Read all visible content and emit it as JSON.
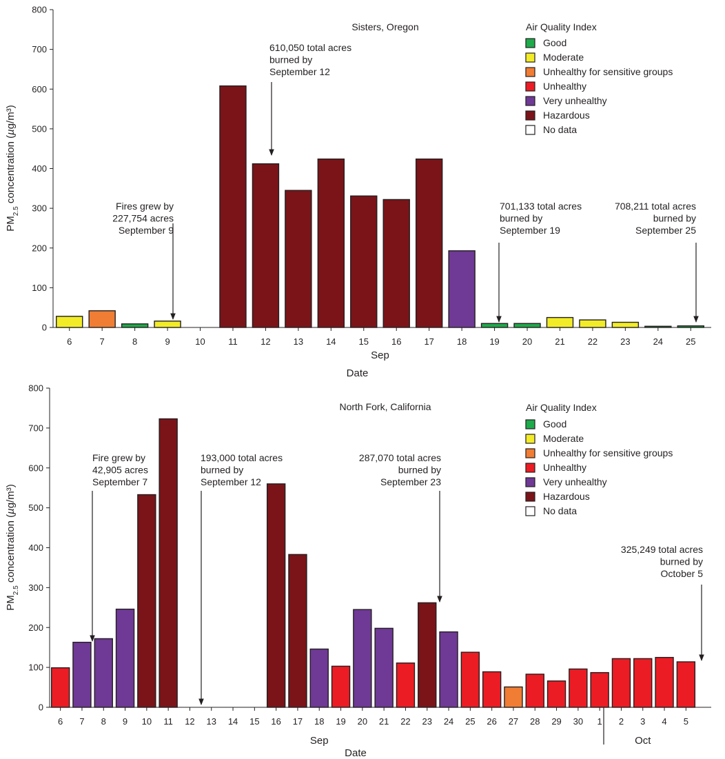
{
  "legend": {
    "title": "Air Quality Index",
    "items": [
      {
        "key": "good",
        "label": "Good",
        "color": "#1faa4b"
      },
      {
        "key": "moderate",
        "label": "Moderate",
        "color": "#f2ec28"
      },
      {
        "key": "usg",
        "label": "Unhealthy for sensitive groups",
        "color": "#f07d33"
      },
      {
        "key": "unhealthy",
        "label": "Unhealthy",
        "color": "#ec1c24"
      },
      {
        "key": "very_unhealthy",
        "label": "Very unhealthy",
        "color": "#6f3996"
      },
      {
        "key": "hazardous",
        "label": "Hazardous",
        "color": "#7a1419"
      },
      {
        "key": "no_data",
        "label": "No data",
        "color": "#ffffff"
      }
    ]
  },
  "chart_data": [
    {
      "type": "bar",
      "title": "Sisters, Oregon",
      "ylabel": "PM2.5 concentration (µg/m³)",
      "ylabel_parts": {
        "pre": "PM",
        "sub": "2.5",
        "post": " concentration (",
        "mu": "µ",
        "unit": "g/m³)"
      },
      "xlabel": "Date",
      "ylim": [
        0,
        800
      ],
      "yticks": [
        0,
        100,
        200,
        300,
        400,
        500,
        600,
        700,
        800
      ],
      "categories": [
        "6",
        "7",
        "8",
        "9",
        "10",
        "11",
        "12",
        "13",
        "14",
        "15",
        "16",
        "17",
        "18",
        "19",
        "20",
        "21",
        "22",
        "23",
        "24",
        "25"
      ],
      "values": [
        28,
        42,
        9,
        16,
        null,
        608,
        412,
        345,
        424,
        331,
        322,
        424,
        193,
        10,
        10,
        25,
        19,
        13,
        3,
        4
      ],
      "aqi": [
        "moderate",
        "usg",
        "good",
        "moderate",
        "no_data",
        "hazardous",
        "hazardous",
        "hazardous",
        "hazardous",
        "hazardous",
        "hazardous",
        "hazardous",
        "very_unhealthy",
        "good",
        "good",
        "moderate",
        "moderate",
        "moderate",
        "good",
        "good"
      ],
      "month_groups": [
        {
          "label": "Sep",
          "from": 0,
          "to": 19
        }
      ],
      "annotations": [
        {
          "lines": [
            "Fires grew by",
            "227,754 acres",
            "September 9"
          ],
          "x": "9",
          "align": "end"
        },
        {
          "lines": [
            "610,050 total acres",
            "burned by",
            "September 12"
          ],
          "x": "12",
          "align": "start"
        },
        {
          "lines": [
            "701,133 total acres",
            "burned by",
            "September 19"
          ],
          "x": "19",
          "align": "start"
        },
        {
          "lines": [
            "708,211 total acres",
            "burned by",
            "September 25"
          ],
          "x": "25",
          "align": "end"
        }
      ]
    },
    {
      "type": "bar",
      "title": "North Fork, California",
      "ylabel": "PM2.5 concentration (µg/m³)",
      "ylabel_parts": {
        "pre": "PM",
        "sub": "2.5",
        "post": " concentration (",
        "mu": "µ",
        "unit": "g/m³)"
      },
      "xlabel": "Date",
      "ylim": [
        0,
        800
      ],
      "yticks": [
        0,
        100,
        200,
        300,
        400,
        500,
        600,
        700,
        800
      ],
      "categories": [
        "6",
        "7",
        "8",
        "9",
        "10",
        "11",
        "12",
        "13",
        "14",
        "15",
        "16",
        "17",
        "18",
        "19",
        "20",
        "21",
        "22",
        "23",
        "24",
        "25",
        "26",
        "27",
        "28",
        "29",
        "30",
        "1",
        "2",
        "3",
        "4",
        "5"
      ],
      "values": [
        99,
        163,
        172,
        246,
        533,
        723,
        null,
        null,
        null,
        null,
        560,
        383,
        146,
        103,
        245,
        198,
        111,
        262,
        189,
        138,
        89,
        51,
        83,
        66,
        96,
        87,
        122,
        122,
        125,
        114
      ],
      "aqi": [
        "unhealthy",
        "very_unhealthy",
        "very_unhealthy",
        "very_unhealthy",
        "hazardous",
        "hazardous",
        "no_data",
        "no_data",
        "no_data",
        "no_data",
        "hazardous",
        "hazardous",
        "very_unhealthy",
        "unhealthy",
        "very_unhealthy",
        "very_unhealthy",
        "unhealthy",
        "hazardous",
        "very_unhealthy",
        "unhealthy",
        "unhealthy",
        "usg",
        "unhealthy",
        "unhealthy",
        "unhealthy",
        "unhealthy",
        "unhealthy",
        "unhealthy",
        "unhealthy",
        "unhealthy"
      ],
      "month_groups": [
        {
          "label": "Sep",
          "from": 0,
          "to": 24
        },
        {
          "label": "Oct",
          "from": 25,
          "to": 29
        }
      ],
      "annotations": [
        {
          "lines": [
            "Fire grew by",
            "42,905 acres",
            "September 7"
          ],
          "x": "7",
          "align": "start"
        },
        {
          "lines": [
            "193,000 total acres",
            "burned by",
            "September 12"
          ],
          "x": "12",
          "align": "start"
        },
        {
          "lines": [
            "287,070 total acres",
            "burned by",
            "September 23"
          ],
          "x": "23",
          "align": "end"
        },
        {
          "lines": [
            "325,249 total acres",
            "burned by",
            "October 5"
          ],
          "x": "5",
          "align": "end"
        }
      ]
    }
  ]
}
